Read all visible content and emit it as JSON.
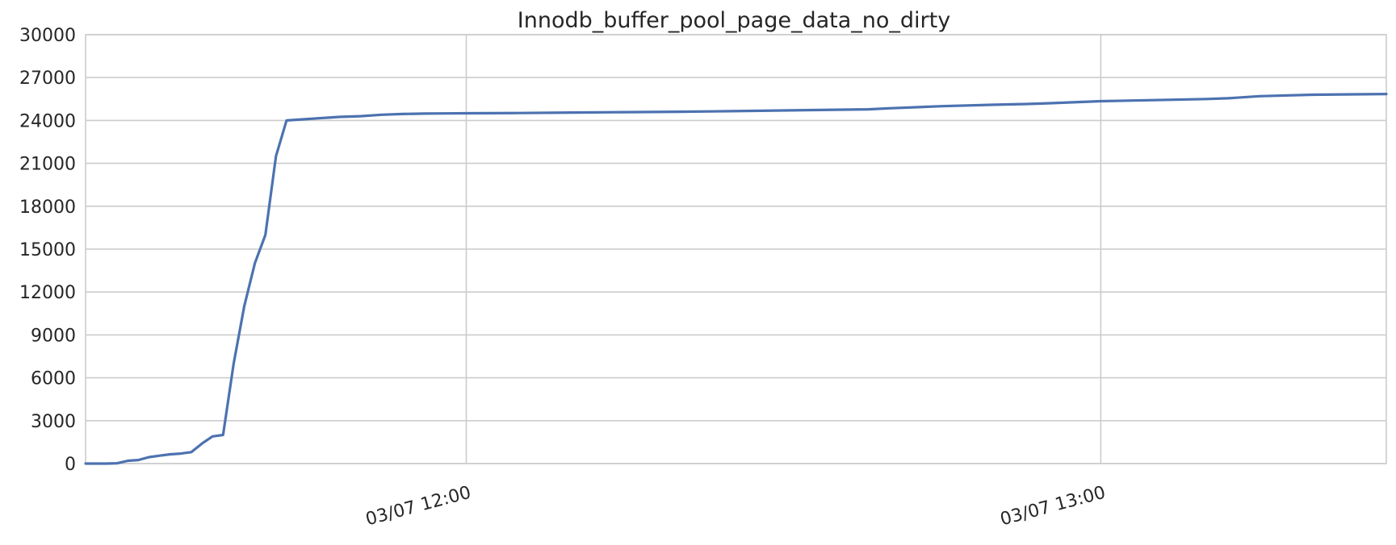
{
  "chart_data": {
    "type": "line",
    "title": "Innodb_buffer_pool_page_data_no_dirty",
    "xlabel": "",
    "ylabel": "",
    "ylim": [
      0,
      30000
    ],
    "xlim": [
      "03/07 11:24",
      "03/07 13:27"
    ],
    "yticks": [
      0,
      3000,
      6000,
      9000,
      12000,
      15000,
      18000,
      21000,
      24000,
      27000,
      30000
    ],
    "yticklabels": [
      "0",
      "3000",
      "6000",
      "9000",
      "12000",
      "15000",
      "18000",
      "21000",
      "24000",
      "27000",
      "30000"
    ],
    "xticks": [
      "03/07 12:00",
      "03/07 13:00"
    ],
    "xticklabels": [
      "03/07 12:00",
      "03/07 13:00"
    ],
    "grid": true,
    "line_color": "#4c72b0",
    "series": [
      {
        "x": [
          "03/07 11:24",
          "03/07 11:25",
          "03/07 11:26",
          "03/07 11:27",
          "03/07 11:28",
          "03/07 11:29",
          "03/07 11:30",
          "03/07 11:31",
          "03/07 11:32",
          "03/07 11:33",
          "03/07 11:34",
          "03/07 11:35",
          "03/07 11:36",
          "03/07 11:37",
          "03/07 11:38",
          "03/07 11:39",
          "03/07 11:40",
          "03/07 11:41",
          "03/07 11:42",
          "03/07 11:43",
          "03/07 11:44",
          "03/07 11:45",
          "03/07 11:46",
          "03/07 11:47",
          "03/07 11:48",
          "03/07 11:50",
          "03/07 11:52",
          "03/07 11:54",
          "03/07 11:56",
          "03/07 11:58",
          "03/07 12:00",
          "03/07 12:05",
          "03/07 12:10",
          "03/07 12:15",
          "03/07 12:20",
          "03/07 12:25",
          "03/07 12:30",
          "03/07 12:35",
          "03/07 12:38",
          "03/07 12:40",
          "03/07 12:45",
          "03/07 12:50",
          "03/07 12:53",
          "03/07 12:55",
          "03/07 13:00",
          "03/07 13:05",
          "03/07 13:10",
          "03/07 13:12",
          "03/07 13:15",
          "03/07 13:20",
          "03/07 13:27"
        ],
        "values": [
          0,
          0,
          0,
          20,
          200,
          250,
          450,
          550,
          650,
          700,
          800,
          1400,
          1900,
          2000,
          7000,
          11000,
          14000,
          16000,
          21500,
          24000,
          24050,
          24100,
          24150,
          24200,
          24250,
          24300,
          24400,
          24450,
          24480,
          24490,
          24500,
          24520,
          24550,
          24580,
          24610,
          24650,
          24700,
          24750,
          24780,
          24850,
          25000,
          25100,
          25150,
          25200,
          25350,
          25420,
          25500,
          25550,
          25700,
          25800,
          25850
        ]
      }
    ]
  }
}
